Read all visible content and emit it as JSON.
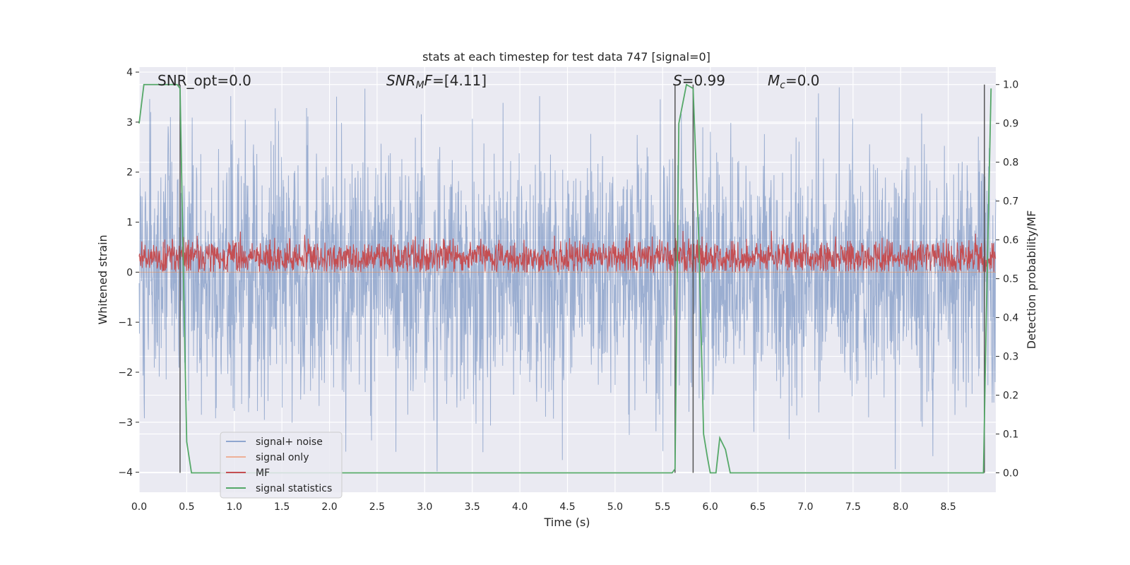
{
  "chart_data": {
    "type": "line",
    "title": "stats at each timestep for test data 747 [signal=0]",
    "xlabel": "Time (s)",
    "ylabel_left": "Whitened strain",
    "ylabel_right": "Detection probability/MF",
    "xlim": [
      0,
      9.0
    ],
    "ylim_left": [
      -4.4,
      4.1
    ],
    "ylim_right": [
      -0.05,
      1.045
    ],
    "x_ticks": [
      "0.0",
      "0.5",
      "1.0",
      "1.5",
      "2.0",
      "2.5",
      "3.0",
      "3.5",
      "4.0",
      "4.5",
      "5.0",
      "5.5",
      "6.0",
      "6.5",
      "7.0",
      "7.5",
      "8.0",
      "8.5"
    ],
    "x_tick_values": [
      0,
      0.5,
      1,
      1.5,
      2,
      2.5,
      3,
      3.5,
      4,
      4.5,
      5,
      5.5,
      6,
      6.5,
      7,
      7.5,
      8,
      8.5
    ],
    "y_ticks_left": [
      "−4",
      "−3",
      "−2",
      "−1",
      "0",
      "1",
      "2",
      "3",
      "4"
    ],
    "y_tick_values_left": [
      -4,
      -3,
      -2,
      -1,
      0,
      1,
      2,
      3,
      4
    ],
    "y_ticks_right": [
      "0.0",
      "0.1",
      "0.2",
      "0.3",
      "0.4",
      "0.5",
      "0.6",
      "0.7",
      "0.8",
      "0.9",
      "1.0"
    ],
    "y_tick_values_right": [
      0,
      0.1,
      0.2,
      0.3,
      0.4,
      0.5,
      0.6,
      0.7,
      0.8,
      0.9,
      1.0
    ],
    "grid": true,
    "legend_placement": "lower-left",
    "annotations": {
      "snr_opt": "SNR_opt=0.0",
      "snr_mf": "=[4.11]",
      "snr_mf_main": "SNR",
      "snr_mf_sub": "M",
      "snr_mf_tail": "F",
      "s_value": "=0.99",
      "s_main": "S",
      "mc_main": "M",
      "mc_sub": "c",
      "mc_value": "=0.0"
    },
    "vertical_markers_x": [
      0.43,
      5.63,
      5.82,
      8.88
    ],
    "series": [
      {
        "name": "signal+ noise",
        "color": "#4c72b0",
        "style": "noise",
        "amplitude_typical": 1.4,
        "amplitude_max": 3.75,
        "range": [
          -4.0,
          3.75
        ]
      },
      {
        "name": "signal only",
        "color": "#dd8452",
        "style": "flat",
        "values": [
          0
        ]
      },
      {
        "name": "MF",
        "color": "#c44e52",
        "style": "mf",
        "range": [
          0.0,
          1.0
        ],
        "baseline": 0.3
      },
      {
        "name": "signal statistics",
        "color": "#55a868",
        "style": "line",
        "axis": "right",
        "x": [
          0,
          0.05,
          0.4,
          0.43,
          0.47,
          0.5,
          0.55,
          5.6,
          5.63,
          5.67,
          5.75,
          5.82,
          5.88,
          5.93,
          5.97,
          6.0,
          6.06,
          6.1,
          6.16,
          6.21,
          6.26,
          6.32,
          8.87,
          8.9,
          8.95
        ],
        "values": [
          0.9,
          1.0,
          1.0,
          0.99,
          0.45,
          0.08,
          0.0,
          0.0,
          0.01,
          0.9,
          1.0,
          0.99,
          0.6,
          0.1,
          0.04,
          0.0,
          0.0,
          0.09,
          0.06,
          0.0,
          0.0,
          0.0,
          0.0,
          0.4,
          0.99
        ]
      }
    ]
  },
  "legend": {
    "items": [
      {
        "label": "signal+ noise",
        "color": "#8fa6cf"
      },
      {
        "label": "signal only",
        "color": "#eeb097"
      },
      {
        "label": "MF",
        "color": "#c44e52"
      },
      {
        "label": "signal statistics",
        "color": "#55a868"
      }
    ]
  }
}
